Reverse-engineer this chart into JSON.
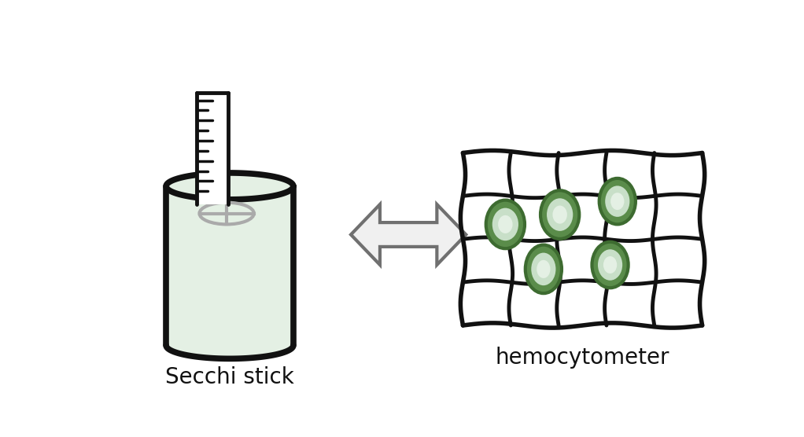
{
  "background_color": "#ffffff",
  "label_left": "Secchi stick",
  "label_right": "hemocytometer",
  "label_fontsize": 20,
  "beaker_fill": "#e4f0e4",
  "beaker_stroke": "#111111",
  "beaker_lw": 5.5,
  "grid_stroke": "#111111",
  "grid_lw": 3.5,
  "cell_fill_outer": "#5a8c4a",
  "cell_fill_mid": "#c8dfc8",
  "cell_fill_inner": "#e4f0e4",
  "cell_stroke": "#3d6b30",
  "arrow_fill": "#f0f0f0",
  "arrow_stroke": "#707070",
  "arrow_lw": 3.0,
  "stick_fill": "#ffffff",
  "stick_stroke": "#111111",
  "stick_lw": 3.5,
  "disk_stroke": "#aaaaaa",
  "disk_lw": 3.0
}
